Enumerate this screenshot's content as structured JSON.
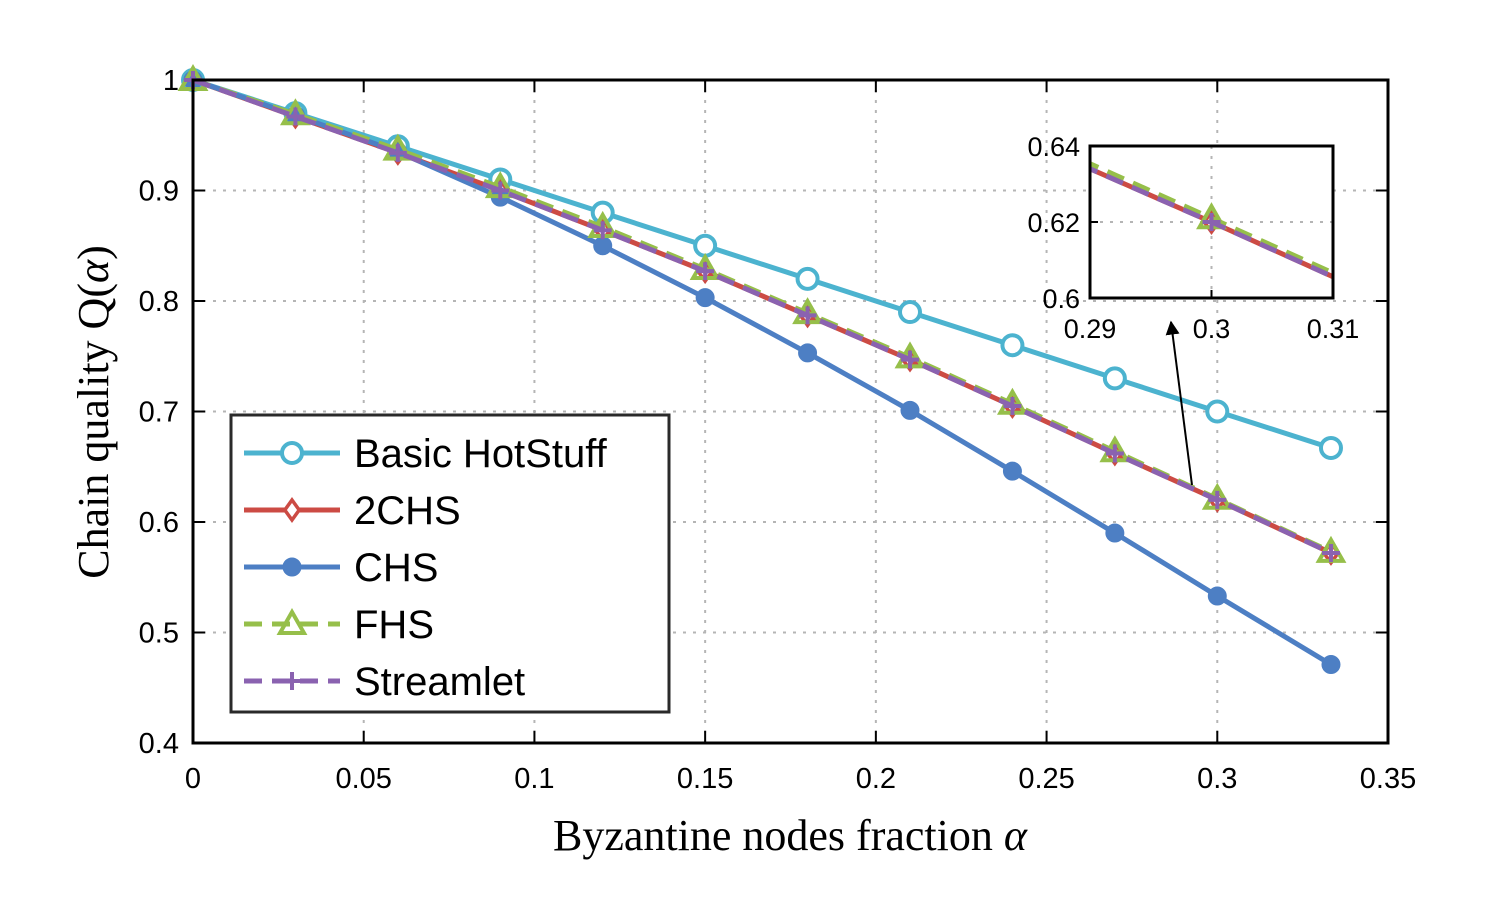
{
  "chart_data": {
    "type": "line",
    "title": "",
    "xlabel": "Byzantine nodes fraction",
    "xlabel_symbol": "α",
    "ylabel": "Chain quality Q(",
    "ylabel_symbol": "α",
    "ylabel_close": ")",
    "xlim": [
      0,
      0.35
    ],
    "ylim": [
      0.4,
      1
    ],
    "xticks": [
      "0",
      "0.05",
      "0.1",
      "0.15",
      "0.2",
      "0.25",
      "0.3",
      "0.35"
    ],
    "yticks": [
      "0.4",
      "0.5",
      "0.6",
      "0.7",
      "0.8",
      "0.9",
      "1"
    ],
    "grid": true,
    "legend_position": "bottom-left",
    "x": [
      0,
      0.03,
      0.06,
      0.09,
      0.12,
      0.15,
      0.18,
      0.21,
      0.24,
      0.27,
      0.3,
      0.3333
    ],
    "series": [
      {
        "name": "Basic HotStuff",
        "color": "#4cb3cf",
        "marker": "circle-open",
        "dash": "solid",
        "values": [
          1.0,
          0.97,
          0.94,
          0.91,
          0.88,
          0.85,
          0.82,
          0.79,
          0.76,
          0.73,
          0.7,
          0.667
        ]
      },
      {
        "name": "2CHS",
        "color": "#cc4b44",
        "marker": "diamond-open",
        "dash": "solid",
        "values": [
          1.0,
          0.967,
          0.934,
          0.9,
          0.864,
          0.827,
          0.787,
          0.747,
          0.705,
          0.662,
          0.62,
          0.572
        ]
      },
      {
        "name": "CHS",
        "color": "#4d7fc4",
        "marker": "dot",
        "dash": "solid",
        "values": [
          1.0,
          0.968,
          0.935,
          0.894,
          0.85,
          0.803,
          0.753,
          0.701,
          0.646,
          0.59,
          0.533,
          0.471
        ]
      },
      {
        "name": "FHS",
        "color": "#96bf4a",
        "marker": "triangle-open",
        "dash": "dashed",
        "values": [
          1.0,
          0.969,
          0.937,
          0.903,
          0.867,
          0.829,
          0.789,
          0.749,
          0.707,
          0.664,
          0.621,
          0.573
        ]
      },
      {
        "name": "Streamlet",
        "color": "#8a62b0",
        "marker": "plus",
        "dash": "dashed",
        "values": [
          1.0,
          0.967,
          0.934,
          0.9,
          0.864,
          0.827,
          0.787,
          0.747,
          0.705,
          0.662,
          0.62,
          0.572
        ]
      }
    ],
    "inset": {
      "xlim": [
        0.29,
        0.31
      ],
      "ylim": [
        0.6,
        0.64
      ],
      "xticks": [
        "0.29",
        "0.3",
        "0.31"
      ],
      "yticks": [
        "0.6",
        "0.62",
        "0.64"
      ],
      "annotation": "zoom-arrow"
    }
  }
}
